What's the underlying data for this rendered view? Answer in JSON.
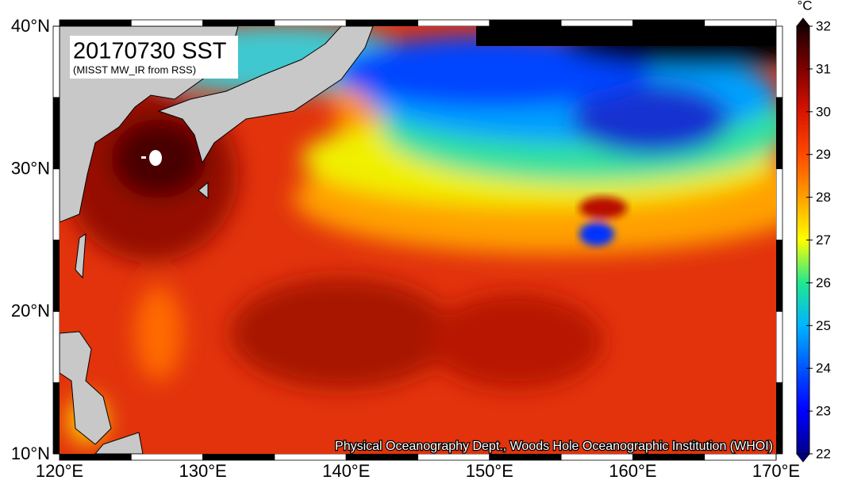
{
  "map": {
    "title": "20170730 SST",
    "subtitle": "(MISST MW_IR from RSS)",
    "credit": "Physical Oceanography Dept., Woods Hole Oceanographic Institution (WHOI)",
    "xlim": [
      120,
      170
    ],
    "ylim": [
      10,
      40
    ],
    "xticks": [
      {
        "value": 120,
        "label": "120°E"
      },
      {
        "value": 130,
        "label": "130°E"
      },
      {
        "value": 140,
        "label": "140°E"
      },
      {
        "value": 150,
        "label": "150°E"
      },
      {
        "value": 160,
        "label": "160°E"
      },
      {
        "value": 170,
        "label": "170°E"
      }
    ],
    "yticks": [
      {
        "value": 10,
        "label": "10°N"
      },
      {
        "value": 20,
        "label": "20°N"
      },
      {
        "value": 30,
        "label": "30°N"
      },
      {
        "value": 40,
        "label": "40°N"
      }
    ]
  },
  "colorbar": {
    "unit": "°C",
    "lim": [
      22,
      32
    ],
    "ticks": [
      22,
      23,
      24,
      25,
      26,
      27,
      28,
      29,
      30,
      31,
      32
    ],
    "colors": [
      "#00008a",
      "#0000ff",
      "#0055ff",
      "#00b4ff",
      "#20e890",
      "#ffff00",
      "#ffa000",
      "#ff4a00",
      "#d81400",
      "#800000",
      "#1a0000"
    ]
  }
}
